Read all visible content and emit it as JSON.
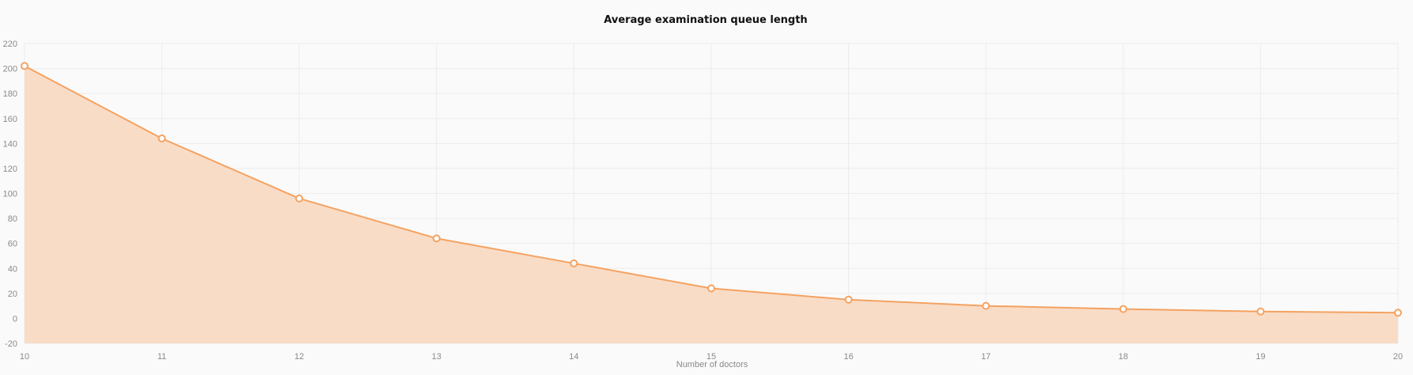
{
  "chart_data": {
    "type": "area",
    "title": "Average examination queue length",
    "xlabel": "Number of doctors",
    "ylabel": "",
    "x": [
      10,
      11,
      12,
      13,
      14,
      15,
      16,
      17,
      18,
      19,
      20
    ],
    "series": [
      {
        "values": [
          202,
          144,
          96,
          64,
          44,
          24,
          15,
          10,
          7.5,
          5.5,
          4.5
        ]
      }
    ],
    "xlim": [
      10,
      20
    ],
    "ylim": [
      -20,
      220
    ],
    "yticks": [
      -20,
      0,
      20,
      40,
      60,
      80,
      100,
      120,
      140,
      160,
      180,
      200,
      220
    ],
    "grid": true,
    "legend": "none",
    "colors": {
      "line": "#f4a261",
      "fill": "#f9dcc6",
      "marker_fill": "#ffffff",
      "background": "#fafafa",
      "grid": "#ececec"
    }
  }
}
